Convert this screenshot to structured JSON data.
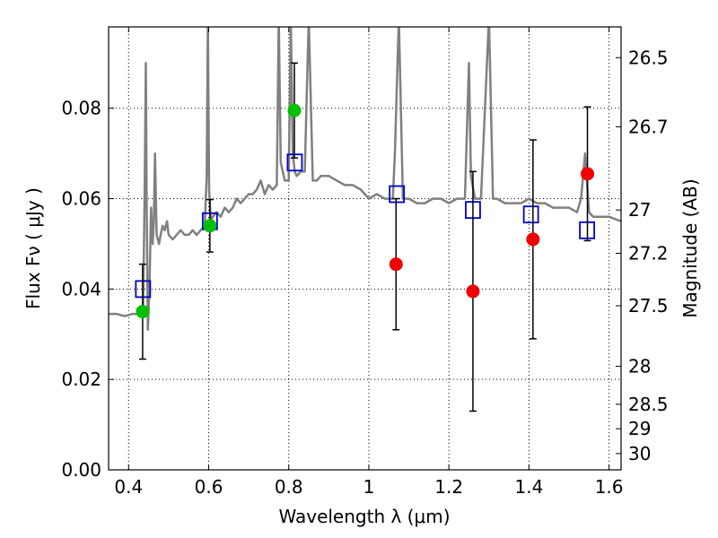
{
  "chart_data": {
    "type": "scatter",
    "xlabel": "Wavelength  λ (μm)",
    "ylabel": "Flux  Fν ( μJy )",
    "y2label": "Magnitude (AB)",
    "xlim": [
      0.35,
      1.63
    ],
    "ylim": [
      0.0,
      0.098
    ],
    "grid": true,
    "x_ticks": [
      0.4,
      0.6,
      0.8,
      1.0,
      1.2,
      1.4,
      1.6
    ],
    "x_tick_labels": [
      "0.4",
      "0.6",
      "0.8",
      "1",
      "1.2",
      "1.4",
      "1.6"
    ],
    "y_ticks": [
      0.0,
      0.02,
      0.04,
      0.06,
      0.08
    ],
    "y_tick_labels": [
      "0.00",
      "0.02",
      "0.04",
      "0.06",
      "0.08"
    ],
    "y2_ticks": [
      {
        "label": "26.5",
        "flux": 0.0912
      },
      {
        "label": "26.7",
        "flux": 0.0759
      },
      {
        "label": "27",
        "flux": 0.0575
      },
      {
        "label": "27.2",
        "flux": 0.0479
      },
      {
        "label": "27.5",
        "flux": 0.0363
      },
      {
        "label": "28",
        "flux": 0.0229
      },
      {
        "label": "28.5",
        "flux": 0.0145
      },
      {
        "label": "29",
        "flux": 0.0091
      },
      {
        "label": "30",
        "flux": 0.0036
      }
    ],
    "series": [
      {
        "kind": "spectrum",
        "color": "#808080",
        "x": [
          0.35,
          0.37,
          0.39,
          0.41,
          0.425,
          0.432,
          0.436,
          0.44,
          0.443,
          0.445,
          0.448,
          0.452,
          0.456,
          0.46,
          0.463,
          0.466,
          0.47,
          0.476,
          0.48,
          0.485,
          0.49,
          0.496,
          0.5,
          0.51,
          0.52,
          0.53,
          0.54,
          0.55,
          0.56,
          0.57,
          0.58,
          0.59,
          0.595,
          0.598,
          0.601,
          0.604,
          0.606,
          0.61,
          0.62,
          0.63,
          0.64,
          0.65,
          0.66,
          0.67,
          0.68,
          0.69,
          0.7,
          0.71,
          0.72,
          0.73,
          0.74,
          0.75,
          0.76,
          0.77,
          0.775,
          0.78,
          0.79,
          0.8,
          0.805,
          0.81,
          0.815,
          0.82,
          0.83,
          0.84,
          0.85,
          0.86,
          0.87,
          0.88,
          0.9,
          0.92,
          0.94,
          0.96,
          0.98,
          1.0,
          1.02,
          1.04,
          1.06,
          1.065,
          1.075,
          1.085,
          1.1,
          1.12,
          1.14,
          1.16,
          1.18,
          1.2,
          1.22,
          1.24,
          1.25,
          1.255,
          1.265,
          1.28,
          1.3,
          1.31,
          1.32,
          1.34,
          1.36,
          1.38,
          1.4,
          1.42,
          1.44,
          1.46,
          1.48,
          1.5,
          1.52,
          1.53,
          1.54,
          1.55,
          1.56,
          1.58,
          1.6,
          1.63
        ],
        "y": [
          0.0345,
          0.0345,
          0.034,
          0.0345,
          0.0345,
          0.034,
          0.035,
          0.06,
          0.09,
          0.06,
          0.031,
          0.04,
          0.058,
          0.05,
          0.055,
          0.07,
          0.052,
          0.05,
          0.052,
          0.054,
          0.053,
          0.055,
          0.052,
          0.051,
          0.052,
          0.053,
          0.052,
          0.052,
          0.053,
          0.052,
          0.053,
          0.054,
          0.065,
          0.1,
          0.062,
          0.057,
          0.055,
          0.056,
          0.057,
          0.056,
          0.058,
          0.057,
          0.058,
          0.06,
          0.059,
          0.06,
          0.061,
          0.061,
          0.062,
          0.064,
          0.061,
          0.063,
          0.062,
          0.063,
          0.1,
          0.068,
          0.064,
          0.064,
          0.1,
          0.07,
          0.066,
          0.065,
          0.066,
          0.066,
          0.1,
          0.064,
          0.064,
          0.065,
          0.065,
          0.064,
          0.063,
          0.063,
          0.062,
          0.06,
          0.061,
          0.06,
          0.06,
          0.07,
          0.1,
          0.06,
          0.06,
          0.059,
          0.059,
          0.06,
          0.06,
          0.059,
          0.06,
          0.06,
          0.09,
          0.065,
          0.06,
          0.06,
          0.1,
          0.06,
          0.06,
          0.059,
          0.059,
          0.059,
          0.06,
          0.059,
          0.059,
          0.058,
          0.058,
          0.058,
          0.057,
          0.06,
          0.07,
          0.057,
          0.056,
          0.056,
          0.056,
          0.055
        ]
      },
      {
        "kind": "model-points",
        "marker": "open-square",
        "color": "#0000cc",
        "x": [
          0.436,
          0.603,
          0.815,
          1.07,
          1.26,
          1.405,
          1.545
        ],
        "y": [
          0.04,
          0.055,
          0.068,
          0.061,
          0.0575,
          0.0565,
          0.053
        ]
      },
      {
        "kind": "observed",
        "marker": "circle",
        "color": "#00c000",
        "x": [
          0.435,
          0.603,
          0.814
        ],
        "y": [
          0.035,
          0.054,
          0.0795
        ],
        "err": [
          0.0105,
          0.0058,
          0.0105
        ]
      },
      {
        "kind": "observed",
        "marker": "circle",
        "color": "#ee0000",
        "x": [
          1.068,
          1.26,
          1.41,
          1.546
        ],
        "y": [
          0.0455,
          0.0395,
          0.051,
          0.0655
        ],
        "err": [
          0.0145,
          0.0265,
          0.022,
          0.0148
        ]
      }
    ]
  }
}
